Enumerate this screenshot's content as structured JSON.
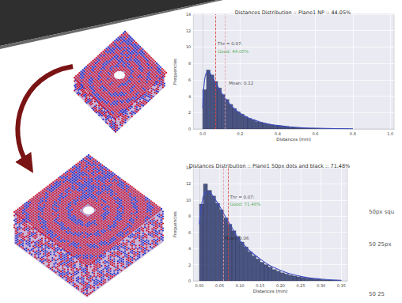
{
  "chart_data": [
    {
      "type": "histogram",
      "title": "Distances Distribution :: Plane1 NP :: 44.05%",
      "xlabel": "Distances (mm)",
      "ylabel": "Frequencies",
      "bins": [
        0,
        0.02,
        0.04,
        0.06,
        0.08,
        0.1,
        0.12,
        0.14,
        0.16,
        0.18,
        0.2,
        0.22,
        0.24,
        0.26,
        0.28,
        0.3,
        0.32,
        0.34,
        0.36,
        0.38,
        0.4,
        0.42,
        0.44,
        0.46,
        0.48,
        0.5,
        0.52,
        0.54,
        0.56,
        0.58,
        0.6,
        0.62,
        0.64,
        0.66,
        0.68,
        0.7,
        0.72,
        0.74,
        0.76,
        0.78,
        0.8
      ],
      "values": [
        4.8,
        7.2,
        6.6,
        5.8,
        5.0,
        4.2,
        3.6,
        3.0,
        2.5,
        2.1,
        1.8,
        1.5,
        1.3,
        1.1,
        0.9,
        0.8,
        0.7,
        0.6,
        0.5,
        0.45,
        0.4,
        0.35,
        0.3,
        0.25,
        0.2,
        0.18,
        0.15,
        0.12,
        0.1,
        0.1,
        0.08,
        0.06,
        0.05,
        0.05,
        0.04,
        0.03,
        0.03,
        0.02,
        0.02,
        0.01
      ],
      "color": "#2e3a6e",
      "kde": {
        "x": [
          0,
          0.01,
          0.03,
          0.05,
          0.08,
          0.1,
          0.15,
          0.2,
          0.3,
          0.4,
          0.5,
          0.6,
          0.8
        ],
        "values": [
          2.5,
          6.0,
          7.0,
          6.4,
          5.2,
          4.4,
          2.9,
          1.9,
          0.9,
          0.42,
          0.2,
          0.09,
          0.02
        ],
        "color": "#3b4cc0"
      },
      "lines": [
        {
          "x": 0.07,
          "color": "#e0403a",
          "line_style": "dashed"
        },
        {
          "x": 0.12,
          "color": "#e89aa8",
          "line_style": "dashed"
        }
      ],
      "annotations": [
        {
          "text": "Thr = 0.07:",
          "x": 0.08,
          "y": 10.4,
          "color": "#222222"
        },
        {
          "text": "Good: 44.05%",
          "x": 0.08,
          "y": 9.5,
          "color": "#2ca02c"
        },
        {
          "text": "Mean: 0.12",
          "x": 0.14,
          "y": 5.6,
          "color": "#222222"
        }
      ],
      "xlim": [
        -0.05,
        1.02
      ],
      "xticks": [
        {
          "value": 0,
          "label": "0.0"
        },
        {
          "value": 0.2,
          "label": "0.2"
        },
        {
          "value": 0.4,
          "label": "0.4"
        },
        {
          "value": 0.6,
          "label": "0.6"
        },
        {
          "value": 0.8,
          "label": "0.8"
        },
        {
          "value": 1,
          "label": "1.0"
        }
      ],
      "ylim": [
        0,
        14
      ],
      "yticks": [
        0,
        2,
        4,
        6,
        8,
        10,
        12,
        14
      ],
      "grid": true
    },
    {
      "type": "histogram",
      "title": "Distances Distribution :: Plane1 50px dots and black :: 71.48%",
      "xlabel": "Distances (mm)",
      "ylabel": "Frequencies",
      "bins": [
        0,
        0.01,
        0.02,
        0.03,
        0.04,
        0.05,
        0.06,
        0.07,
        0.08,
        0.09,
        0.1,
        0.11,
        0.12,
        0.13,
        0.14,
        0.15,
        0.16,
        0.17,
        0.18,
        0.19,
        0.2,
        0.21,
        0.22,
        0.23,
        0.24,
        0.25,
        0.26,
        0.27,
        0.28,
        0.29,
        0.3,
        0.31,
        0.32,
        0.33,
        0.34,
        0.35
      ],
      "values": [
        9.5,
        12.0,
        11.2,
        10.5,
        9.6,
        8.8,
        7.8,
        7.0,
        6.2,
        5.5,
        4.8,
        4.2,
        3.6,
        3.1,
        2.7,
        2.3,
        2.0,
        1.7,
        1.4,
        1.2,
        1.0,
        0.85,
        0.7,
        0.6,
        0.5,
        0.42,
        0.35,
        0.3,
        0.25,
        0.2,
        0.16,
        0.12,
        0.1,
        0.08,
        0.05
      ],
      "color": "#2e3a6e",
      "kde": {
        "x": [
          0,
          0.01,
          0.02,
          0.04,
          0.06,
          0.08,
          0.1,
          0.15,
          0.2,
          0.25,
          0.3,
          0.35
        ],
        "values": [
          7.0,
          10.5,
          11.0,
          10.0,
          8.3,
          6.6,
          5.0,
          2.7,
          1.3,
          0.55,
          0.22,
          0.08
        ],
        "color": "#3b4cc0"
      },
      "lines": [
        {
          "x": 0.07,
          "color": "#e0403a",
          "line_style": "dashed"
        },
        {
          "x": 0.06,
          "color": "#e89aa8",
          "line_style": "dashed"
        }
      ],
      "annotations": [
        {
          "text": "Thr = 0.07:",
          "x": 0.075,
          "y": 10.4,
          "color": "#222222"
        },
        {
          "text": "Good: 71.48%",
          "x": 0.075,
          "y": 9.5,
          "color": "#2ca02c"
        },
        {
          "text": "Mean: 0.06",
          "x": 0.062,
          "y": 5.3,
          "color": "#222222"
        }
      ],
      "xlim": [
        -0.015,
        0.365
      ],
      "xticks": [
        {
          "value": 0,
          "label": "0.00"
        },
        {
          "value": 0.05,
          "label": "0.05"
        },
        {
          "value": 0.1,
          "label": "0.10"
        },
        {
          "value": 0.15,
          "label": "0.15"
        },
        {
          "value": 0.2,
          "label": "0.20"
        },
        {
          "value": 0.25,
          "label": "0.25"
        },
        {
          "value": 0.3,
          "label": "0.30"
        },
        {
          "value": 0.35,
          "label": "0.35"
        }
      ],
      "ylim": [
        0,
        14
      ],
      "yticks": [
        0,
        2,
        4,
        6,
        8,
        10,
        12,
        14
      ],
      "grid": true
    }
  ],
  "side_texts": [
    "50px squ",
    "50 25px",
    "50 25"
  ]
}
